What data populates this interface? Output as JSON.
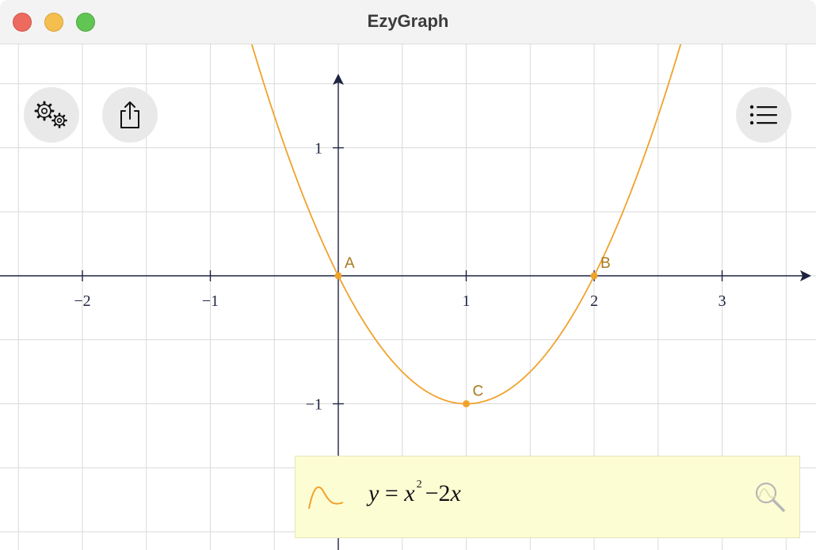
{
  "window": {
    "title": "EzyGraph"
  },
  "toolbar": {
    "settings_icon": "gears-icon",
    "share_icon": "share-icon",
    "list_icon": "list-icon"
  },
  "graph": {
    "x_ticks": [
      "−2",
      "−1",
      "1",
      "2",
      "3"
    ],
    "y_ticks": [
      "1",
      "−1"
    ],
    "x_range": [
      -2.64,
      3.7
    ],
    "y_range": [
      -2.1,
      1.78
    ],
    "grid": true,
    "curve_color": "#f0a22c",
    "points": [
      {
        "label": "A",
        "x": 0,
        "y": 0
      },
      {
        "label": "B",
        "x": 2,
        "y": 0
      },
      {
        "label": "C",
        "x": 1,
        "y": -1
      }
    ]
  },
  "equation": {
    "lhs": "y",
    "equals": "=",
    "term1_var": "x",
    "term1_exp": "2",
    "minus": "−",
    "term2": "2",
    "term2_var": "x",
    "function_icon": "curve-icon",
    "zoom_icon": "magnifier-icon"
  },
  "colors": {
    "axis": "#1e2340",
    "grid": "#d9d9d9",
    "panel": "#fdfdd4",
    "point": "#f0a22c"
  }
}
